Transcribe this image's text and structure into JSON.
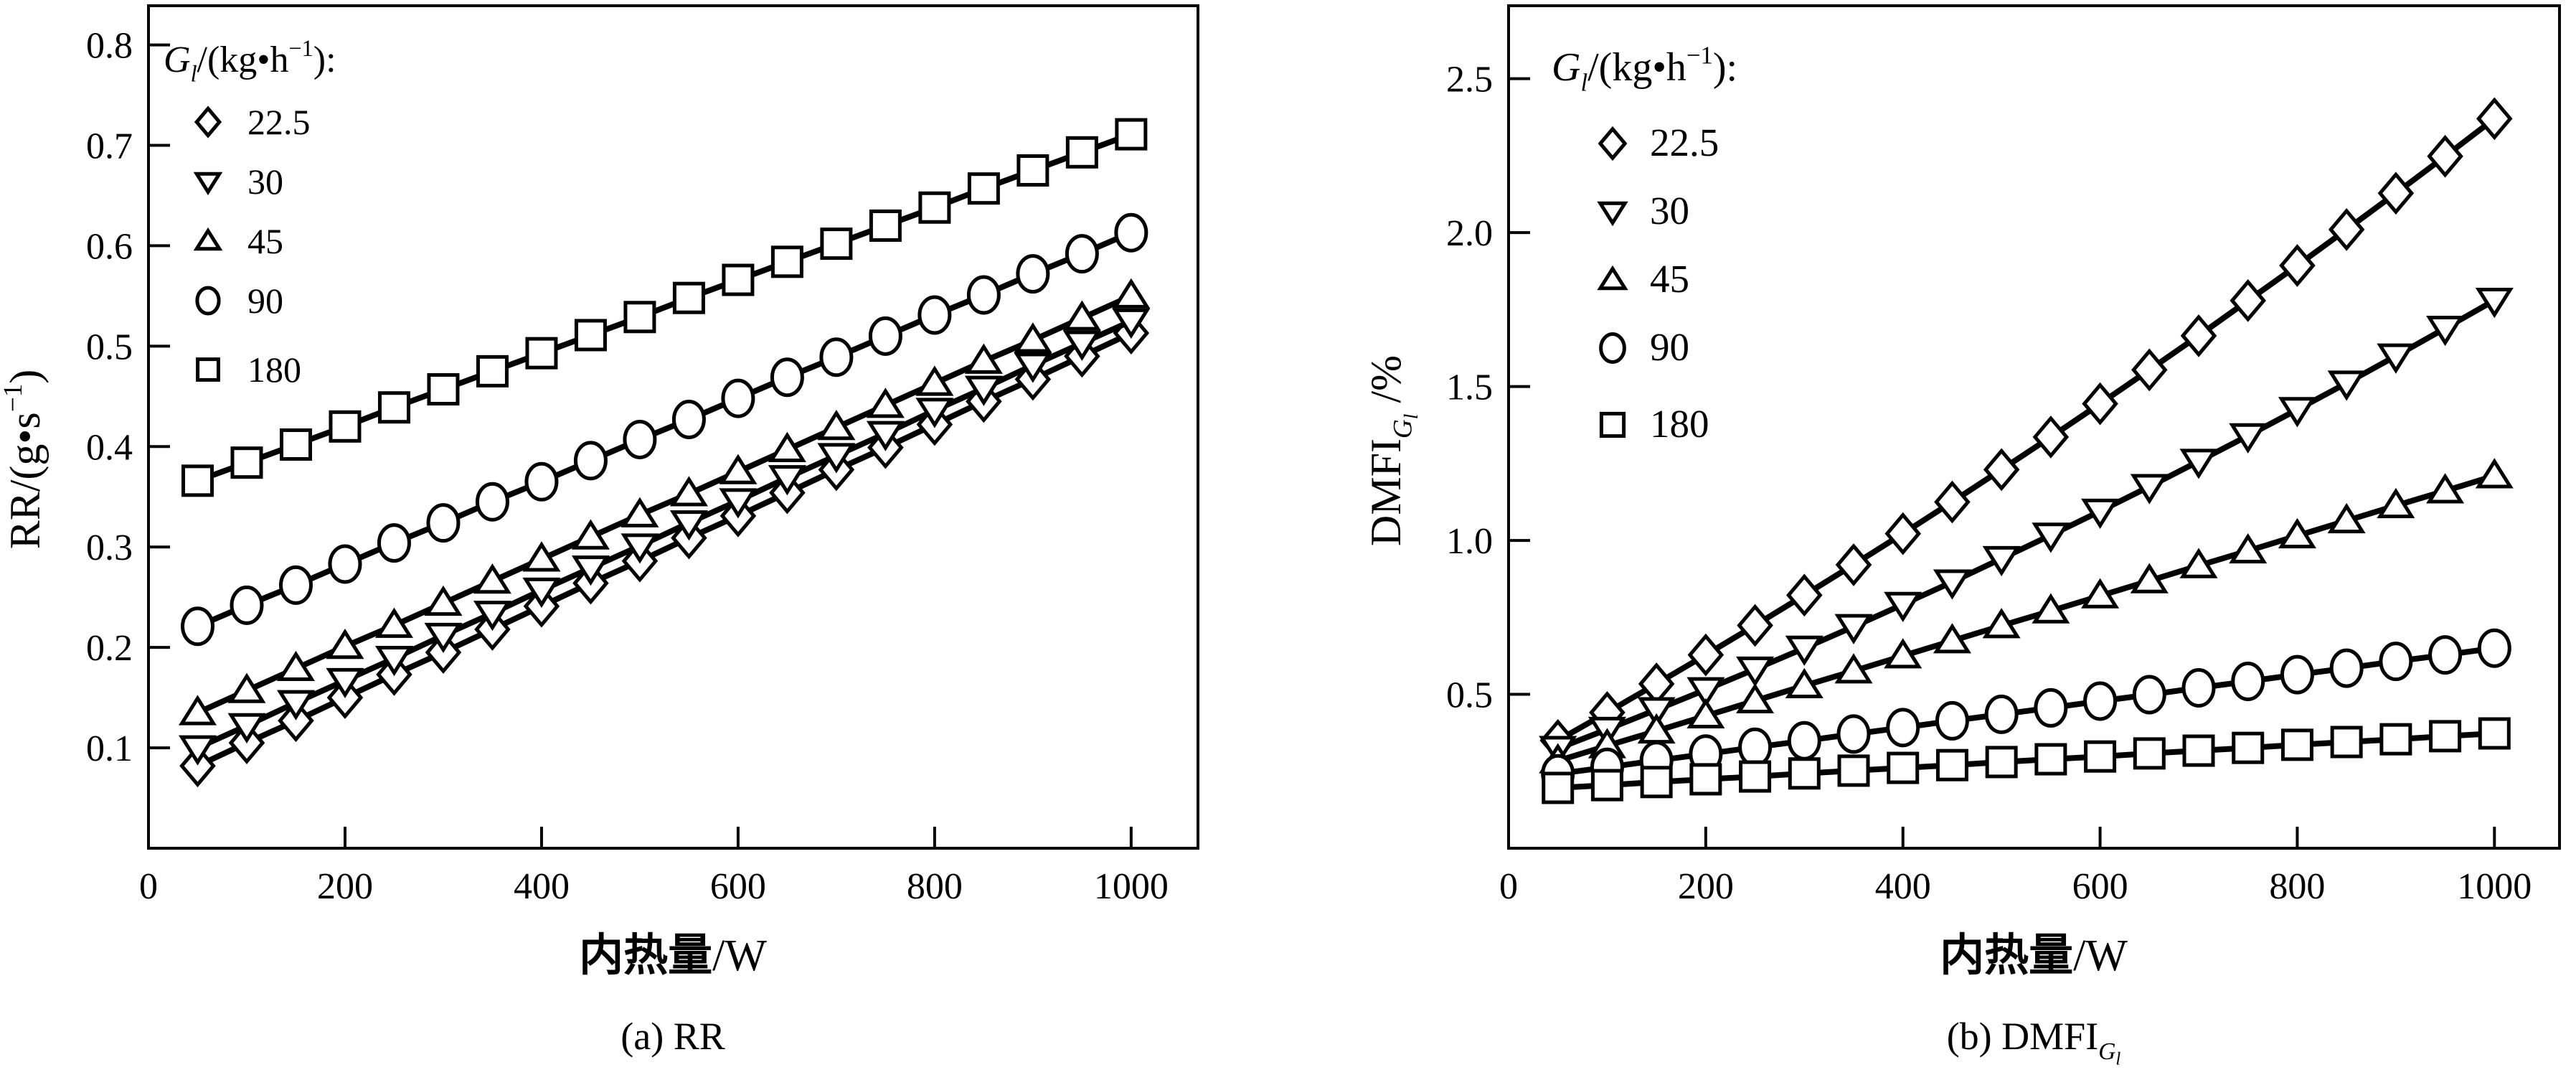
{
  "figure": {
    "colors": {
      "ink": "#000000",
      "background": "#ffffff"
    },
    "panels": [
      {
        "id": "a",
        "caption_parts": [
          {
            "t": "(a) RR"
          }
        ],
        "x_title_parts": [
          {
            "t": "内热量",
            "bold": true
          },
          {
            "t": "/W"
          }
        ],
        "y_title_parts": [
          {
            "t": "RR/(g•s"
          },
          {
            "t": "−1",
            "sup": true
          },
          {
            "t": ")"
          }
        ],
        "legend": {
          "title_parts": [
            {
              "t": "G",
              "italic": true
            },
            {
              "t": "l",
              "italic": true,
              "sub": true
            },
            {
              "t": "/(kg•h"
            },
            {
              "t": "−1",
              "sup": true
            },
            {
              "t": "):"
            }
          ],
          "items": [
            {
              "shape": "diamond",
              "label": "22.5"
            },
            {
              "shape": "triangle-down",
              "label": "30"
            },
            {
              "shape": "triangle-up",
              "label": "45"
            },
            {
              "shape": "circle",
              "label": "90"
            },
            {
              "shape": "square",
              "label": "180"
            }
          ]
        }
      },
      {
        "id": "b",
        "caption_parts": [
          {
            "t": "(b) DMFI"
          },
          {
            "t": "G",
            "italic": true,
            "sub": true
          },
          {
            "t": "l",
            "italic": true,
            "subsub": true
          }
        ],
        "x_title_parts": [
          {
            "t": "内热量",
            "bold": true
          },
          {
            "t": "/W"
          }
        ],
        "y_title_parts": [
          {
            "t": "DMFI"
          },
          {
            "t": "G",
            "italic": true,
            "sub": true
          },
          {
            "t": "l",
            "italic": true,
            "subsub": true
          },
          {
            "t": " /%"
          }
        ],
        "legend": {
          "title_parts": [
            {
              "t": "G",
              "italic": true
            },
            {
              "t": "l",
              "italic": true,
              "sub": true
            },
            {
              "t": "/(kg•h"
            },
            {
              "t": "−1",
              "sup": true
            },
            {
              "t": "):"
            }
          ],
          "items": [
            {
              "shape": "diamond",
              "label": "22.5"
            },
            {
              "shape": "triangle-down",
              "label": "30"
            },
            {
              "shape": "triangle-up",
              "label": "45"
            },
            {
              "shape": "circle",
              "label": "90"
            },
            {
              "shape": "square",
              "label": "180"
            }
          ]
        }
      }
    ]
  },
  "chart_data": [
    {
      "type": "line",
      "title": "(a) RR",
      "xlabel": "内热量/W",
      "ylabel": "RR/(g•s−1)",
      "xlim": [
        0,
        1068
      ],
      "ylim": [
        0,
        0.839
      ],
      "grid": false,
      "legend_position": "upper-left",
      "x_ticks": [
        0,
        200,
        400,
        600,
        800,
        1000
      ],
      "y_ticks": [
        {
          "v": 0.1,
          "label": "0.1"
        },
        {
          "v": 0.2,
          "label": "0.2"
        },
        {
          "v": 0.3,
          "label": "0.3"
        },
        {
          "v": 0.4,
          "label": "0.4"
        },
        {
          "v": 0.5,
          "label": "0.5"
        },
        {
          "v": 0.6,
          "label": "0.6"
        },
        {
          "v": 0.7,
          "label": "0.7"
        },
        {
          "v": 0.8,
          "label": "0.8"
        }
      ],
      "x": [
        50,
        100,
        150,
        200,
        250,
        300,
        350,
        400,
        450,
        500,
        550,
        600,
        650,
        700,
        750,
        800,
        850,
        900,
        950,
        1000
      ],
      "series": [
        {
          "name": "22.5",
          "marker": "diamond",
          "values": [
            0.082,
            0.105,
            0.127,
            0.15,
            0.173,
            0.195,
            0.218,
            0.241,
            0.264,
            0.286,
            0.309,
            0.331,
            0.354,
            0.377,
            0.399,
            0.422,
            0.445,
            0.467,
            0.49,
            0.513
          ]
        },
        {
          "name": "30",
          "marker": "triangle-down",
          "values": [
            0.1,
            0.122,
            0.145,
            0.167,
            0.189,
            0.212,
            0.234,
            0.257,
            0.279,
            0.301,
            0.324,
            0.346,
            0.369,
            0.391,
            0.413,
            0.436,
            0.458,
            0.481,
            0.503,
            0.525
          ]
        },
        {
          "name": "45",
          "marker": "triangle-up",
          "values": [
            0.135,
            0.157,
            0.179,
            0.201,
            0.222,
            0.244,
            0.266,
            0.288,
            0.31,
            0.332,
            0.353,
            0.375,
            0.397,
            0.419,
            0.441,
            0.463,
            0.485,
            0.506,
            0.528,
            0.55
          ]
        },
        {
          "name": "90",
          "marker": "circle",
          "values": [
            0.221,
            0.242,
            0.262,
            0.283,
            0.304,
            0.324,
            0.345,
            0.365,
            0.386,
            0.407,
            0.427,
            0.448,
            0.469,
            0.489,
            0.51,
            0.531,
            0.551,
            0.572,
            0.592,
            0.613
          ]
        },
        {
          "name": "180",
          "marker": "square",
          "values": [
            0.366,
            0.384,
            0.402,
            0.42,
            0.439,
            0.457,
            0.475,
            0.493,
            0.511,
            0.529,
            0.548,
            0.566,
            0.584,
            0.602,
            0.62,
            0.638,
            0.657,
            0.675,
            0.693,
            0.711
          ]
        }
      ]
    },
    {
      "type": "line",
      "title": "(b) DMFI_Gl",
      "xlabel": "内热量/W",
      "ylabel": "DMFI_Gl /%",
      "xlim": [
        0,
        1066
      ],
      "ylim": [
        0,
        2.737
      ],
      "grid": false,
      "legend_position": "upper-left",
      "x_ticks": [
        0,
        200,
        400,
        600,
        800,
        1000
      ],
      "y_ticks": [
        {
          "v": 0.5,
          "label": "0.5"
        },
        {
          "v": 1.0,
          "label": "1.0"
        },
        {
          "v": 1.5,
          "label": "1.5"
        },
        {
          "v": 2.0,
          "label": "2.0"
        },
        {
          "v": 2.5,
          "label": "2.5"
        }
      ],
      "x": [
        50,
        100,
        150,
        200,
        250,
        300,
        350,
        400,
        450,
        500,
        550,
        600,
        650,
        700,
        750,
        800,
        850,
        900,
        950,
        1000
      ],
      "series": [
        {
          "name": "22.5",
          "marker": "diamond",
          "values": [
            0.35,
            0.441,
            0.534,
            0.628,
            0.724,
            0.822,
            0.921,
            1.022,
            1.125,
            1.23,
            1.336,
            1.444,
            1.554,
            1.665,
            1.779,
            1.893,
            2.01,
            2.128,
            2.248,
            2.37
          ]
        },
        {
          "name": "30",
          "marker": "triangle-down",
          "values": [
            0.324,
            0.386,
            0.45,
            0.515,
            0.582,
            0.65,
            0.72,
            0.792,
            0.865,
            0.941,
            1.017,
            1.095,
            1.175,
            1.257,
            1.34,
            1.425,
            1.511,
            1.599,
            1.689,
            1.78
          ]
        },
        {
          "name": "45",
          "marker": "triangle-up",
          "values": [
            0.284,
            0.333,
            0.381,
            0.43,
            0.479,
            0.528,
            0.576,
            0.625,
            0.674,
            0.723,
            0.771,
            0.82,
            0.869,
            0.918,
            0.966,
            1.015,
            1.064,
            1.113,
            1.161,
            1.21
          ]
        },
        {
          "name": "90",
          "marker": "circle",
          "values": [
            0.242,
            0.263,
            0.285,
            0.306,
            0.328,
            0.349,
            0.371,
            0.392,
            0.414,
            0.435,
            0.456,
            0.478,
            0.499,
            0.521,
            0.542,
            0.564,
            0.585,
            0.607,
            0.628,
            0.65
          ]
        },
        {
          "name": "180",
          "marker": "square",
          "values": [
            0.196,
            0.205,
            0.215,
            0.224,
            0.233,
            0.243,
            0.252,
            0.261,
            0.27,
            0.28,
            0.289,
            0.298,
            0.308,
            0.317,
            0.326,
            0.336,
            0.345,
            0.354,
            0.364,
            0.373
          ]
        }
      ]
    }
  ]
}
